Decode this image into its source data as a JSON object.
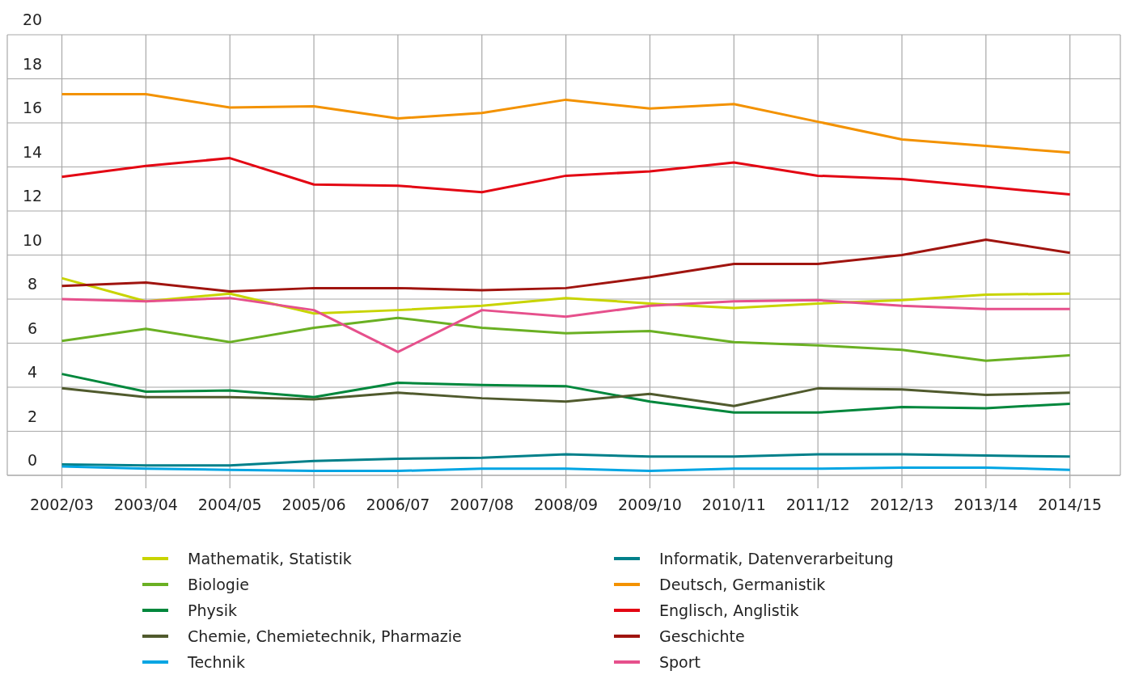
{
  "chart_data": {
    "type": "line",
    "categories": [
      "2002/03",
      "2003/04",
      "2004/05",
      "2005/06",
      "2006/07",
      "2007/08",
      "2008/09",
      "2009/10",
      "2010/11",
      "2011/12",
      "2012/13",
      "2013/14",
      "2014/15"
    ],
    "ylim": [
      0,
      20
    ],
    "yticks": [
      0,
      2,
      4,
      6,
      8,
      10,
      12,
      14,
      16,
      18,
      20
    ],
    "grid": true,
    "legend": "bottom",
    "marker": "none",
    "line_style": "solid",
    "series": [
      {
        "name": "Mathematik, Statistik",
        "color": "#c8d400",
        "values": [
          8.95,
          7.9,
          8.25,
          7.35,
          7.5,
          7.7,
          8.05,
          7.8,
          7.6,
          7.8,
          7.95,
          8.2,
          8.25
        ]
      },
      {
        "name": "Biologie",
        "color": "#6ab023",
        "values": [
          6.1,
          6.65,
          6.05,
          6.7,
          7.15,
          6.7,
          6.45,
          6.55,
          6.05,
          5.9,
          5.7,
          5.2,
          5.45
        ]
      },
      {
        "name": "Physik",
        "color": "#00873c",
        "values": [
          4.6,
          3.8,
          3.85,
          3.55,
          4.2,
          4.1,
          4.05,
          3.35,
          2.85,
          2.85,
          3.1,
          3.05,
          3.25
        ]
      },
      {
        "name": "Chemie, Chemietechnik, Pharmazie",
        "color": "#505a2d",
        "values": [
          3.95,
          3.55,
          3.55,
          3.45,
          3.75,
          3.5,
          3.35,
          3.7,
          3.15,
          3.95,
          3.9,
          3.65,
          3.75
        ]
      },
      {
        "name": "Technik",
        "color": "#00a5e3",
        "values": [
          0.4,
          0.3,
          0.25,
          0.2,
          0.2,
          0.3,
          0.3,
          0.2,
          0.3,
          0.3,
          0.35,
          0.35,
          0.25
        ]
      },
      {
        "name": "Informatik, Datenverarbeitung",
        "color": "#00808a",
        "values": [
          0.5,
          0.45,
          0.45,
          0.65,
          0.75,
          0.8,
          0.95,
          0.85,
          0.85,
          0.95,
          0.95,
          0.9,
          0.85
        ]
      },
      {
        "name": "Deutsch, Germanistik",
        "color": "#f39200",
        "values": [
          17.3,
          17.3,
          16.7,
          16.75,
          16.2,
          16.45,
          17.05,
          16.65,
          16.85,
          16.05,
          15.25,
          14.95,
          14.65
        ]
      },
      {
        "name": "Englisch, Anglistik",
        "color": "#e30613",
        "values": [
          13.55,
          14.05,
          14.4,
          13.2,
          13.15,
          12.85,
          13.6,
          13.8,
          14.2,
          13.6,
          13.45,
          13.1,
          12.75
        ]
      },
      {
        "name": "Geschichte",
        "color": "#a0140f",
        "values": [
          8.6,
          8.75,
          8.35,
          8.5,
          8.5,
          8.4,
          8.5,
          9.0,
          9.6,
          9.6,
          10.0,
          10.7,
          10.1
        ]
      },
      {
        "name": "Sport",
        "color": "#e6508c",
        "values": [
          8.0,
          7.9,
          8.05,
          7.5,
          5.6,
          7.5,
          7.2,
          7.7,
          7.9,
          7.95,
          7.7,
          7.55,
          7.55
        ]
      }
    ]
  }
}
